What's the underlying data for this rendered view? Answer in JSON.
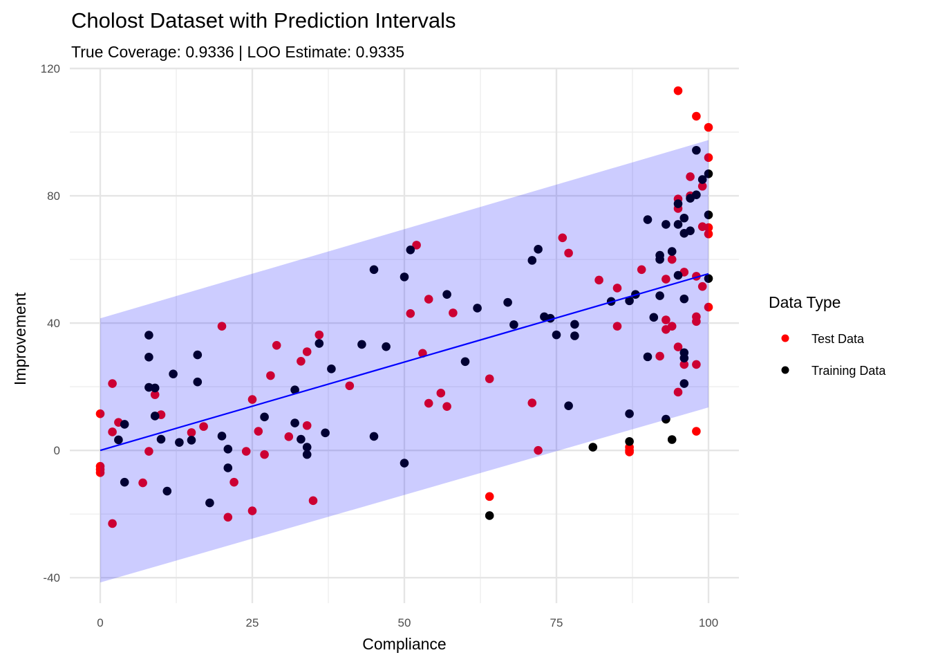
{
  "chart_data": {
    "type": "scatter",
    "title": "Cholost Dataset with Prediction Intervals",
    "subtitle": "True Coverage: 0.9336 | LOO Estimate: 0.9335",
    "xlabel": "Compliance",
    "ylabel": "Improvement",
    "xlim": [
      -5,
      105
    ],
    "ylim": [
      -48,
      120
    ],
    "x_ticks": [
      0,
      25,
      50,
      75,
      100
    ],
    "x_tick_labels": [
      "0",
      "25",
      "50",
      "75",
      "100"
    ],
    "y_ticks": [
      -40,
      0,
      40,
      80,
      120
    ],
    "y_tick_labels": [
      "-40",
      "0",
      "40",
      "80",
      "120"
    ],
    "grid": true,
    "legend": {
      "title": "Data Type",
      "position": "right",
      "entries": [
        {
          "label": "Test Data",
          "color": "#ff0000"
        },
        {
          "label": "Training Data",
          "color": "#000000"
        }
      ]
    },
    "fit_line": {
      "x": [
        0,
        100
      ],
      "y": [
        0,
        55.5
      ],
      "color": "#0000ff"
    },
    "interval_band": {
      "x": [
        0,
        100
      ],
      "lower": [
        -41.5,
        13.5
      ],
      "upper": [
        41.5,
        97.5
      ],
      "color": "#0000ff",
      "opacity": 0.2
    },
    "series": [
      {
        "name": "Test Data",
        "color": "#ff0000",
        "points": [
          [
            0,
            11.5
          ],
          [
            0,
            -5
          ],
          [
            0,
            -6
          ],
          [
            0,
            -7
          ],
          [
            2,
            21
          ],
          [
            2,
            5.8
          ],
          [
            2,
            -23
          ],
          [
            3,
            8.8
          ],
          [
            7,
            -10.2
          ],
          [
            8,
            -0.3
          ],
          [
            9,
            17.5
          ],
          [
            10,
            11.2
          ],
          [
            15,
            5.6
          ],
          [
            17,
            7.5
          ],
          [
            20,
            39
          ],
          [
            21,
            -21
          ],
          [
            22,
            -10
          ],
          [
            24,
            -0.3
          ],
          [
            25,
            16
          ],
          [
            25,
            -19
          ],
          [
            26,
            6
          ],
          [
            27,
            -1.3
          ],
          [
            28,
            23.5
          ],
          [
            29,
            33
          ],
          [
            31,
            4.3
          ],
          [
            33,
            28
          ],
          [
            34,
            31
          ],
          [
            34,
            7.8
          ],
          [
            35,
            -15.8
          ],
          [
            36,
            36.3
          ],
          [
            41,
            20.3
          ],
          [
            51,
            43
          ],
          [
            52,
            64.5
          ],
          [
            53,
            30.5
          ],
          [
            54,
            47.5
          ],
          [
            54,
            14.8
          ],
          [
            56,
            18
          ],
          [
            57,
            13.8
          ],
          [
            58,
            43.2
          ],
          [
            64,
            22.5
          ],
          [
            64,
            -14.5
          ],
          [
            71,
            14.9
          ],
          [
            72,
            0
          ],
          [
            76,
            66.8
          ],
          [
            77,
            62
          ],
          [
            82,
            53.5
          ],
          [
            85,
            51
          ],
          [
            85,
            39
          ],
          [
            87,
            1
          ],
          [
            87,
            0
          ],
          [
            87,
            -0.5
          ],
          [
            89,
            56.8
          ],
          [
            92,
            29.6
          ],
          [
            93,
            53.8
          ],
          [
            93,
            41
          ],
          [
            93,
            38
          ],
          [
            94,
            60
          ],
          [
            94,
            39
          ],
          [
            95,
            113
          ],
          [
            95,
            79
          ],
          [
            95,
            76
          ],
          [
            95,
            32.5
          ],
          [
            95,
            18.3
          ],
          [
            96,
            56
          ],
          [
            96,
            27
          ],
          [
            97,
            86
          ],
          [
            97,
            80
          ],
          [
            98,
            105
          ],
          [
            98,
            54.7
          ],
          [
            98,
            42
          ],
          [
            98,
            40.5
          ],
          [
            98,
            27
          ],
          [
            98,
            6
          ],
          [
            99,
            83
          ],
          [
            99,
            70.3
          ],
          [
            99,
            51.5
          ],
          [
            100,
            101.5
          ],
          [
            100,
            92
          ],
          [
            100,
            70
          ],
          [
            100,
            68
          ],
          [
            100,
            45
          ]
        ]
      },
      {
        "name": "Training Data",
        "color": "#000000",
        "points": [
          [
            3,
            3.3
          ],
          [
            4,
            8.2
          ],
          [
            4,
            -10
          ],
          [
            8,
            36.2
          ],
          [
            8,
            29.3
          ],
          [
            8,
            19.8
          ],
          [
            9,
            19.6
          ],
          [
            9,
            10.8
          ],
          [
            10,
            3.5
          ],
          [
            11,
            -12.8
          ],
          [
            12,
            24
          ],
          [
            13,
            2.5
          ],
          [
            15,
            3.2
          ],
          [
            16,
            30
          ],
          [
            16,
            21.5
          ],
          [
            18,
            -16.5
          ],
          [
            20,
            4.5
          ],
          [
            21,
            0.4
          ],
          [
            21,
            -5.5
          ],
          [
            27,
            10.5
          ],
          [
            32,
            19
          ],
          [
            32,
            8.6
          ],
          [
            33,
            3.5
          ],
          [
            34,
            1
          ],
          [
            34,
            -1.3
          ],
          [
            36,
            33.6
          ],
          [
            37,
            5.5
          ],
          [
            38,
            25.6
          ],
          [
            43,
            33.3
          ],
          [
            45,
            56.8
          ],
          [
            45,
            4.4
          ],
          [
            47,
            32.6
          ],
          [
            50,
            54.5
          ],
          [
            50,
            -4
          ],
          [
            51,
            63
          ],
          [
            57,
            49
          ],
          [
            60,
            27.9
          ],
          [
            62,
            44.7
          ],
          [
            64,
            -20.5
          ],
          [
            67,
            46.5
          ],
          [
            68,
            39.5
          ],
          [
            71,
            59.7
          ],
          [
            72,
            63.2
          ],
          [
            73,
            42
          ],
          [
            74,
            41.5
          ],
          [
            75,
            36.3
          ],
          [
            77,
            14
          ],
          [
            78,
            39.6
          ],
          [
            78,
            36
          ],
          [
            81,
            1
          ],
          [
            84,
            46.8
          ],
          [
            87,
            47
          ],
          [
            87,
            11.5
          ],
          [
            87,
            2.8
          ],
          [
            88,
            49
          ],
          [
            90,
            72.5
          ],
          [
            90,
            29.4
          ],
          [
            91,
            41.8
          ],
          [
            92,
            61.3
          ],
          [
            92,
            60
          ],
          [
            92,
            48.6
          ],
          [
            93,
            71
          ],
          [
            93,
            9.8
          ],
          [
            94,
            62.5
          ],
          [
            94,
            3.4
          ],
          [
            95,
            77.5
          ],
          [
            95,
            71
          ],
          [
            95,
            55
          ],
          [
            96,
            73
          ],
          [
            96,
            68.2
          ],
          [
            96,
            47.6
          ],
          [
            96,
            30.7
          ],
          [
            96,
            29
          ],
          [
            96,
            21
          ],
          [
            97,
            79.2
          ],
          [
            97,
            69
          ],
          [
            98,
            94.3
          ],
          [
            98,
            80.3
          ],
          [
            99,
            85.1
          ],
          [
            100,
            86.9
          ],
          [
            100,
            74
          ],
          [
            100,
            54
          ]
        ]
      }
    ]
  }
}
